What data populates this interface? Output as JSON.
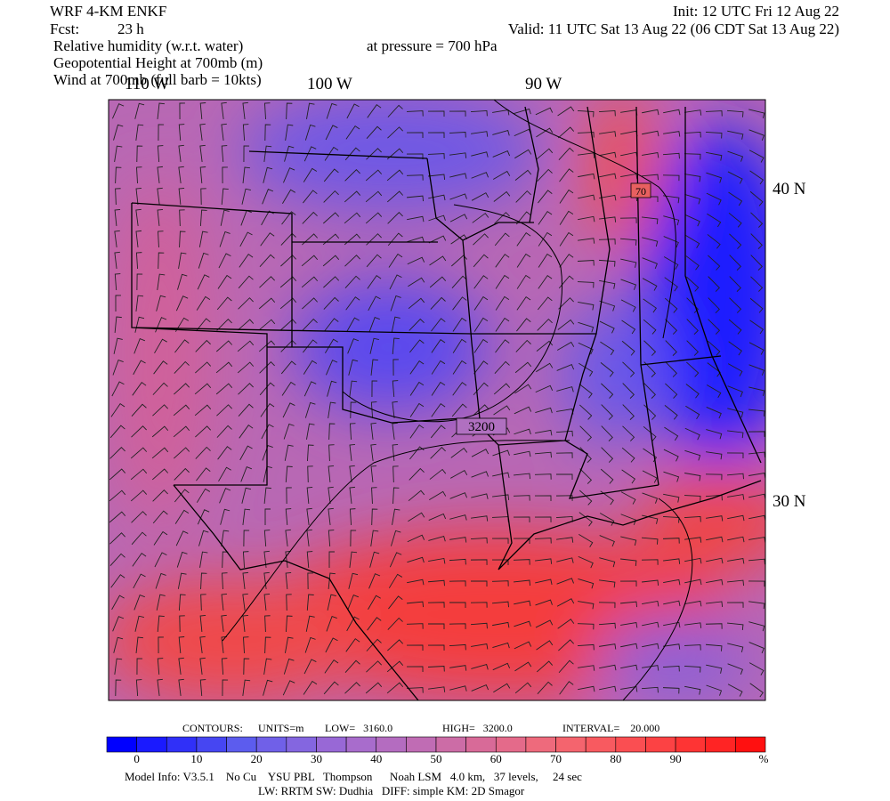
{
  "header": {
    "model": "WRF 4-KM ENKF",
    "forecast_label": "Fcst:",
    "forecast": "23 h",
    "init": "Init: 12 UTC Fri 12 Aug 22",
    "valid": "Valid: 11 UTC Sat 13 Aug 22 (06 CDT Sat 13 Aug 22)",
    "fields": [
      "Relative humidity (w.r.t. water)",
      "Geopotential Height at 700mb (m)",
      "Wind at 700mb (full barb = 10kts)"
    ],
    "pressure": "at pressure =  700 hPa"
  },
  "map": {
    "lon_labels": [
      "110 W",
      "100 W",
      "90 W"
    ],
    "lat_labels": [
      "40 N",
      "30 N"
    ],
    "contour_labels": [
      "3200",
      "70"
    ]
  },
  "contours": {
    "heading": "CONTOURS:",
    "units": "UNITS=m",
    "low": "LOW=   3160.0",
    "high": "HIGH=   3200.0",
    "interval": "INTERVAL=    20.000"
  },
  "colorbar": {
    "labels": [
      "0",
      "10",
      "20",
      "30",
      "40",
      "50",
      "60",
      "70",
      "80",
      "90"
    ],
    "unit": "%"
  },
  "footer": [
    "Model Info: V3.5.1    No Cu    YSU PBL   Thompson      Noah LSM   4.0 km,   37 levels,     24 sec",
    "LW: RRTM SW: Dudhia   DIFF: simple KM: 2D Smagor"
  ]
}
